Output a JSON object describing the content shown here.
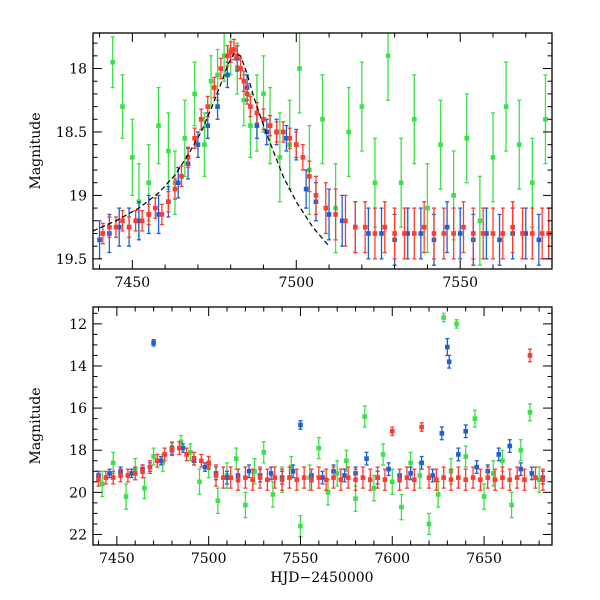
{
  "chart_data": [
    {
      "type": "scatter",
      "panel": "top",
      "xlabel": "",
      "ylabel": "Magnitude",
      "xlim": [
        7438,
        7578
      ],
      "ylim": [
        19.58,
        17.72
      ],
      "y_inverted": true,
      "xticks": [
        7450,
        7500,
        7550
      ],
      "yticks": [
        18,
        18.5,
        19,
        19.5
      ],
      "ytick_labels": [
        "18",
        "18.5",
        "19",
        "19.5"
      ],
      "error_bars": true,
      "colors": {
        "blue": "#1f5fd6",
        "green": "#3ee04a",
        "red": "#ff3b2f",
        "model_curve": "#000000"
      },
      "series": [
        {
          "color": "#3ee04a",
          "x": [
            7444,
            7447,
            7450,
            7452,
            7455,
            7458,
            7461,
            7463,
            7466,
            7469,
            7472,
            7474,
            7476,
            7478,
            7480,
            7482,
            7484,
            7486,
            7488,
            7490,
            7492,
            7495,
            7498,
            7501,
            7504,
            7508,
            7512,
            7516,
            7520,
            7524,
            7528,
            7532,
            7536,
            7540,
            7544,
            7548,
            7552,
            7556,
            7560,
            7564,
            7568,
            7572,
            7576
          ],
          "y": [
            17.95,
            18.3,
            18.7,
            19.05,
            18.9,
            18.45,
            18.65,
            18.9,
            18.55,
            18.2,
            18.6,
            18.1,
            18.05,
            17.9,
            17.85,
            18.0,
            18.25,
            18.45,
            18.35,
            18.2,
            18.45,
            18.7,
            18.6,
            18.0,
            18.8,
            18.4,
            19.1,
            18.5,
            18.3,
            18.9,
            17.9,
            18.9,
            18.4,
            19.1,
            18.6,
            19.0,
            18.55,
            19.2,
            18.7,
            18.3,
            18.6,
            18.9,
            18.4
          ],
          "err": [
            0.2,
            0.25,
            0.3,
            0.3,
            0.3,
            0.3,
            0.3,
            0.25,
            0.3,
            0.25,
            0.25,
            0.2,
            0.2,
            0.2,
            0.2,
            0.2,
            0.2,
            0.25,
            0.3,
            0.3,
            0.3,
            0.35,
            0.35,
            0.35,
            0.35,
            0.35,
            0.35,
            0.35,
            0.35,
            0.35,
            0.35,
            0.35,
            0.35,
            0.35,
            0.35,
            0.35,
            0.35,
            0.35,
            0.35,
            0.35,
            0.35,
            0.35,
            0.35
          ]
        },
        {
          "color": "#1f5fd6",
          "x": [
            7440,
            7443,
            7446,
            7449,
            7452,
            7455,
            7458,
            7461,
            7464,
            7467,
            7470,
            7473,
            7476,
            7479,
            7482,
            7485,
            7488,
            7491,
            7494,
            7497,
            7500,
            7503,
            7506,
            7510,
            7514,
            7518,
            7522,
            7526,
            7530,
            7534,
            7538,
            7542,
            7546,
            7550,
            7554,
            7558,
            7562,
            7566,
            7570,
            7574,
            7577
          ],
          "y": [
            19.35,
            19.3,
            19.25,
            19.25,
            19.2,
            19.15,
            19.15,
            19.05,
            18.9,
            18.75,
            18.6,
            18.45,
            18.3,
            18.05,
            17.92,
            18.15,
            18.45,
            18.5,
            18.5,
            18.55,
            18.6,
            18.95,
            19.05,
            19.15,
            19.2,
            19.25,
            19.3,
            19.3,
            19.35,
            19.3,
            19.3,
            19.35,
            19.25,
            19.3,
            19.35,
            19.3,
            19.35,
            19.3,
            19.3,
            19.35,
            19.3
          ],
          "err": [
            0.15,
            0.15,
            0.15,
            0.15,
            0.15,
            0.15,
            0.15,
            0.12,
            0.12,
            0.12,
            0.1,
            0.1,
            0.1,
            0.1,
            0.1,
            0.1,
            0.1,
            0.1,
            0.1,
            0.1,
            0.12,
            0.15,
            0.15,
            0.2,
            0.2,
            0.2,
            0.2,
            0.2,
            0.2,
            0.2,
            0.2,
            0.2,
            0.2,
            0.2,
            0.2,
            0.2,
            0.2,
            0.2,
            0.2,
            0.2,
            0.2
          ]
        },
        {
          "color": "#ff3b2f",
          "x": [
            7441,
            7443,
            7445,
            7447,
            7449,
            7451,
            7453,
            7455,
            7457,
            7459,
            7461,
            7463,
            7465,
            7467,
            7469,
            7471,
            7473,
            7475,
            7477,
            7479,
            7480,
            7481,
            7482,
            7483,
            7484,
            7485,
            7486,
            7488,
            7490,
            7492,
            7494,
            7496,
            7498,
            7500,
            7502,
            7504,
            7506,
            7509,
            7512,
            7515,
            7518,
            7521,
            7524,
            7527,
            7530,
            7533,
            7536,
            7539,
            7542,
            7545,
            7548,
            7551,
            7554,
            7557,
            7560,
            7563,
            7566,
            7569,
            7572,
            7575,
            7577
          ],
          "y": [
            19.3,
            19.25,
            19.25,
            19.2,
            19.25,
            19.2,
            19.2,
            19.15,
            19.1,
            19.15,
            19.05,
            18.95,
            18.85,
            18.7,
            18.55,
            18.4,
            18.3,
            18.15,
            18.0,
            17.9,
            17.87,
            17.85,
            17.9,
            18.0,
            18.1,
            18.2,
            18.3,
            18.35,
            18.4,
            18.45,
            18.5,
            18.5,
            18.55,
            18.6,
            18.7,
            18.85,
            19.0,
            19.1,
            19.15,
            19.2,
            19.25,
            19.25,
            19.3,
            19.25,
            19.3,
            19.3,
            19.3,
            19.25,
            19.3,
            19.3,
            19.3,
            19.25,
            19.3,
            19.3,
            19.3,
            19.3,
            19.25,
            19.3,
            19.3,
            19.3,
            19.3
          ],
          "err": [
            0.08,
            0.08,
            0.08,
            0.08,
            0.08,
            0.08,
            0.08,
            0.08,
            0.08,
            0.08,
            0.08,
            0.08,
            0.08,
            0.08,
            0.08,
            0.08,
            0.08,
            0.08,
            0.08,
            0.08,
            0.08,
            0.08,
            0.08,
            0.08,
            0.08,
            0.08,
            0.08,
            0.08,
            0.08,
            0.08,
            0.08,
            0.08,
            0.08,
            0.1,
            0.1,
            0.12,
            0.15,
            0.2,
            0.2,
            0.2,
            0.2,
            0.2,
            0.2,
            0.2,
            0.2,
            0.2,
            0.2,
            0.2,
            0.2,
            0.2,
            0.2,
            0.2,
            0.2,
            0.2,
            0.2,
            0.2,
            0.2,
            0.2,
            0.2,
            0.2,
            0.2
          ]
        }
      ],
      "model_curve": {
        "color": "#000000",
        "style": "dashed",
        "x": [
          7438,
          7445,
          7452,
          7458,
          7463,
          7467,
          7471,
          7474,
          7477,
          7479,
          7481,
          7483,
          7485,
          7487,
          7490,
          7493,
          7496,
          7500,
          7505,
          7510
        ],
        "y": [
          19.28,
          19.2,
          19.1,
          18.98,
          18.84,
          18.68,
          18.5,
          18.32,
          18.12,
          17.98,
          17.88,
          17.9,
          18.04,
          18.22,
          18.45,
          18.65,
          18.85,
          19.05,
          19.25,
          19.4
        ]
      }
    },
    {
      "type": "scatter",
      "panel": "bottom",
      "xlabel": "HJD−2450000",
      "ylabel": "Magnitude",
      "xlim": [
        7437,
        7687
      ],
      "ylim": [
        22.5,
        11.2
      ],
      "y_inverted": true,
      "xticks": [
        7450,
        7500,
        7550,
        7600,
        7650
      ],
      "yticks": [
        12,
        14,
        16,
        18,
        20,
        22
      ],
      "ytick_labels": [
        "12",
        "14",
        "16",
        "18",
        "20",
        "22"
      ],
      "error_bars": true,
      "colors": {
        "blue": "#1f5fd6",
        "green": "#3ee04a",
        "red": "#ff3b2f"
      },
      "series": [
        {
          "color": "#3ee04a",
          "x": [
            7442,
            7448,
            7455,
            7460,
            7465,
            7470,
            7475,
            7480,
            7485,
            7490,
            7495,
            7500,
            7505,
            7510,
            7515,
            7520,
            7525,
            7530,
            7535,
            7540,
            7545,
            7550,
            7555,
            7560,
            7565,
            7570,
            7575,
            7580,
            7585,
            7590,
            7595,
            7600,
            7605,
            7610,
            7615,
            7620,
            7625,
            7628,
            7632,
            7635,
            7640,
            7645,
            7650,
            7655,
            7660,
            7665,
            7670,
            7675,
            7680
          ],
          "y": [
            19.6,
            18.6,
            20.2,
            18.9,
            19.8,
            18.3,
            18.6,
            17.9,
            17.6,
            18.1,
            19.5,
            18.8,
            20.4,
            19.2,
            18.4,
            20.6,
            19.0,
            18.1,
            20.1,
            19.4,
            18.8,
            21.6,
            19.3,
            17.9,
            20.0,
            19.1,
            18.5,
            20.3,
            16.4,
            19.8,
            18.2,
            19.5,
            20.7,
            18.6,
            19.2,
            21.5,
            20.1,
            11.7,
            19.0,
            12.0,
            18.3,
            16.5,
            20.2,
            19.1,
            18.5,
            20.6,
            18.0,
            16.2,
            19.4
          ],
          "err": [
            0.6,
            0.5,
            0.6,
            0.5,
            0.5,
            0.4,
            0.4,
            0.3,
            0.3,
            0.4,
            0.6,
            0.5,
            0.6,
            0.6,
            0.5,
            0.6,
            0.6,
            0.5,
            0.6,
            0.6,
            0.5,
            0.5,
            0.6,
            0.5,
            0.6,
            0.6,
            0.5,
            0.6,
            0.5,
            0.6,
            0.5,
            0.6,
            0.6,
            0.5,
            0.6,
            0.5,
            0.6,
            0.2,
            0.6,
            0.2,
            0.5,
            0.4,
            0.6,
            0.6,
            0.5,
            0.6,
            0.5,
            0.4,
            0.6
          ]
        },
        {
          "color": "#1f5fd6",
          "x": [
            7440,
            7446,
            7452,
            7458,
            7464,
            7468,
            7470,
            7474,
            7480,
            7486,
            7492,
            7498,
            7504,
            7510,
            7516,
            7522,
            7528,
            7534,
            7540,
            7546,
            7550,
            7556,
            7562,
            7568,
            7574,
            7580,
            7586,
            7592,
            7598,
            7604,
            7610,
            7616,
            7622,
            7627,
            7630,
            7631,
            7636,
            7640,
            7646,
            7652,
            7658,
            7664,
            7670,
            7676,
            7682
          ],
          "y": [
            19.2,
            19.1,
            19.0,
            19.1,
            18.9,
            18.8,
            12.9,
            18.5,
            18.0,
            17.9,
            18.5,
            18.8,
            19.1,
            19.3,
            19.2,
            19.0,
            19.2,
            19.1,
            19.3,
            19.0,
            16.8,
            19.2,
            19.3,
            19.0,
            19.2,
            19.1,
            18.4,
            19.3,
            18.9,
            19.2,
            19.1,
            18.6,
            19.2,
            17.2,
            13.1,
            13.8,
            18.2,
            17.1,
            18.8,
            19.0,
            18.2,
            17.8,
            18.9,
            19.1,
            19.3
          ],
          "err": [
            0.2,
            0.2,
            0.2,
            0.2,
            0.2,
            0.2,
            0.15,
            0.2,
            0.2,
            0.2,
            0.2,
            0.2,
            0.3,
            0.3,
            0.3,
            0.3,
            0.3,
            0.3,
            0.3,
            0.3,
            0.2,
            0.3,
            0.3,
            0.3,
            0.3,
            0.3,
            0.3,
            0.3,
            0.3,
            0.3,
            0.3,
            0.3,
            0.3,
            0.3,
            0.4,
            0.3,
            0.3,
            0.3,
            0.3,
            0.3,
            0.3,
            0.3,
            0.3,
            0.3,
            0.3
          ]
        },
        {
          "color": "#ff3b2f",
          "x": [
            7440,
            7444,
            7448,
            7452,
            7456,
            7460,
            7464,
            7468,
            7472,
            7476,
            7480,
            7484,
            7488,
            7492,
            7496,
            7500,
            7504,
            7508,
            7512,
            7516,
            7520,
            7524,
            7528,
            7532,
            7536,
            7540,
            7544,
            7548,
            7552,
            7556,
            7560,
            7564,
            7568,
            7572,
            7576,
            7580,
            7584,
            7588,
            7592,
            7596,
            7600,
            7604,
            7608,
            7612,
            7616,
            7620,
            7624,
            7628,
            7632,
            7636,
            7640,
            7644,
            7648,
            7652,
            7656,
            7660,
            7664,
            7668,
            7672,
            7675,
            7678,
            7682
          ],
          "y": [
            19.4,
            19.3,
            19.3,
            19.2,
            19.2,
            19.1,
            19.0,
            18.8,
            18.5,
            18.2,
            17.95,
            17.9,
            18.2,
            18.4,
            18.5,
            18.6,
            19.2,
            19.3,
            19.3,
            19.4,
            19.3,
            19.4,
            19.3,
            19.4,
            19.3,
            19.4,
            19.3,
            19.4,
            19.3,
            19.4,
            19.3,
            19.4,
            19.3,
            19.4,
            19.3,
            19.4,
            19.3,
            19.4,
            19.3,
            19.4,
            17.1,
            19.4,
            19.3,
            19.4,
            16.9,
            19.3,
            19.4,
            19.3,
            19.4,
            19.3,
            19.4,
            19.3,
            19.4,
            19.3,
            19.4,
            19.3,
            19.4,
            19.3,
            19.4,
            13.5,
            19.3,
            19.4
          ],
          "err": [
            0.3,
            0.3,
            0.3,
            0.3,
            0.3,
            0.3,
            0.3,
            0.3,
            0.3,
            0.3,
            0.3,
            0.3,
            0.3,
            0.3,
            0.3,
            0.3,
            0.5,
            0.5,
            0.5,
            0.5,
            0.5,
            0.5,
            0.5,
            0.5,
            0.5,
            0.5,
            0.5,
            0.5,
            0.5,
            0.5,
            0.5,
            0.5,
            0.5,
            0.5,
            0.5,
            0.5,
            0.5,
            0.5,
            0.5,
            0.5,
            0.2,
            0.5,
            0.5,
            0.5,
            0.2,
            0.5,
            0.5,
            0.5,
            0.5,
            0.5,
            0.5,
            0.5,
            0.5,
            0.5,
            0.5,
            0.5,
            0.5,
            0.5,
            0.5,
            0.3,
            0.5,
            0.5
          ]
        }
      ]
    }
  ]
}
